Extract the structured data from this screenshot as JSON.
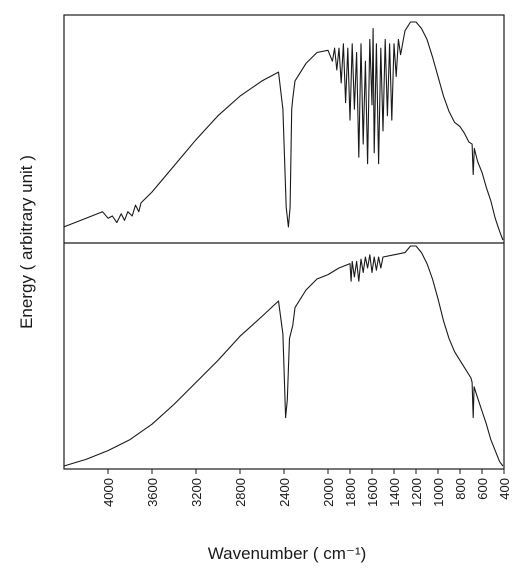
{
  "chart_data": [
    {
      "type": "line",
      "panel": "top",
      "xlabel": "Wavenumber ( cm⁻¹)",
      "ylabel": "Energy ( arbitrary unit )",
      "xlim": [
        4400,
        400
      ],
      "ylim": [
        0,
        1
      ],
      "x_reversed": true,
      "series": [
        {
          "points": [
            [
              4400,
              0.06
            ],
            [
              4200,
              0.1
            ],
            [
              4050,
              0.13
            ],
            [
              4000,
              0.1
            ],
            [
              3960,
              0.11
            ],
            [
              3920,
              0.08
            ],
            [
              3880,
              0.12
            ],
            [
              3850,
              0.09
            ],
            [
              3820,
              0.13
            ],
            [
              3780,
              0.11
            ],
            [
              3750,
              0.16
            ],
            [
              3720,
              0.13
            ],
            [
              3700,
              0.17
            ],
            [
              3600,
              0.22
            ],
            [
              3400,
              0.34
            ],
            [
              3200,
              0.46
            ],
            [
              3000,
              0.57
            ],
            [
              2800,
              0.66
            ],
            [
              2600,
              0.73
            ],
            [
              2450,
              0.77
            ],
            [
              2410,
              0.6
            ],
            [
              2380,
              0.15
            ],
            [
              2360,
              0.06
            ],
            [
              2345,
              0.15
            ],
            [
              2330,
              0.6
            ],
            [
              2320,
              0.65
            ],
            [
              2300,
              0.73
            ],
            [
              2200,
              0.81
            ],
            [
              2100,
              0.86
            ],
            [
              2000,
              0.87
            ],
            [
              1960,
              0.82
            ],
            [
              1940,
              0.88
            ],
            [
              1920,
              0.78
            ],
            [
              1900,
              0.88
            ],
            [
              1880,
              0.72
            ],
            [
              1860,
              0.9
            ],
            [
              1840,
              0.63
            ],
            [
              1820,
              0.88
            ],
            [
              1800,
              0.55
            ],
            [
              1780,
              0.9
            ],
            [
              1760,
              0.6
            ],
            [
              1740,
              0.86
            ],
            [
              1720,
              0.38
            ],
            [
              1700,
              0.9
            ],
            [
              1680,
              0.44
            ],
            [
              1660,
              0.82
            ],
            [
              1640,
              0.35
            ],
            [
              1620,
              0.92
            ],
            [
              1600,
              0.62
            ],
            [
              1590,
              0.97
            ],
            [
              1580,
              0.4
            ],
            [
              1560,
              0.9
            ],
            [
              1540,
              0.35
            ],
            [
              1520,
              0.88
            ],
            [
              1500,
              0.5
            ],
            [
              1480,
              0.92
            ],
            [
              1460,
              0.57
            ],
            [
              1440,
              0.9
            ],
            [
              1420,
              0.55
            ],
            [
              1400,
              0.9
            ],
            [
              1380,
              0.75
            ],
            [
              1360,
              0.92
            ],
            [
              1340,
              0.85
            ],
            [
              1300,
              0.96
            ],
            [
              1250,
              1.0
            ],
            [
              1200,
              1.0
            ],
            [
              1150,
              0.97
            ],
            [
              1100,
              0.92
            ],
            [
              1050,
              0.84
            ],
            [
              1000,
              0.75
            ],
            [
              950,
              0.66
            ],
            [
              900,
              0.59
            ],
            [
              850,
              0.54
            ],
            [
              800,
              0.52
            ],
            [
              760,
              0.49
            ],
            [
              720,
              0.45
            ],
            [
              690,
              0.44
            ],
            [
              680,
              0.3
            ],
            [
              670,
              0.42
            ],
            [
              640,
              0.36
            ],
            [
              600,
              0.31
            ],
            [
              560,
              0.24
            ],
            [
              520,
              0.18
            ],
            [
              480,
              0.1
            ],
            [
              440,
              0.04
            ],
            [
              410,
              0.0
            ]
          ]
        }
      ]
    },
    {
      "type": "line",
      "panel": "bottom",
      "xlabel": "Wavenumber ( cm⁻¹)",
      "ylabel": "Energy ( arbitrary unit )",
      "xlim": [
        4400,
        400
      ],
      "ylim": [
        0,
        1
      ],
      "x_reversed": true,
      "xticks": [
        4000,
        3600,
        3200,
        2800,
        2400,
        2000,
        1800,
        1600,
        1400,
        1200,
        1000,
        800,
        600,
        400
      ],
      "series": [
        {
          "points": [
            [
              4400,
              0.0
            ],
            [
              4200,
              0.03
            ],
            [
              4000,
              0.07
            ],
            [
              3800,
              0.12
            ],
            [
              3600,
              0.19
            ],
            [
              3400,
              0.28
            ],
            [
              3200,
              0.38
            ],
            [
              3000,
              0.48
            ],
            [
              2800,
              0.59
            ],
            [
              2600,
              0.68
            ],
            [
              2450,
              0.75
            ],
            [
              2410,
              0.6
            ],
            [
              2385,
              0.22
            ],
            [
              2370,
              0.3
            ],
            [
              2350,
              0.58
            ],
            [
              2320,
              0.64
            ],
            [
              2300,
              0.72
            ],
            [
              2200,
              0.8
            ],
            [
              2100,
              0.85
            ],
            [
              2000,
              0.87
            ],
            [
              1900,
              0.9
            ],
            [
              1800,
              0.92
            ],
            [
              1790,
              0.84
            ],
            [
              1780,
              0.93
            ],
            [
              1760,
              0.86
            ],
            [
              1740,
              0.93
            ],
            [
              1720,
              0.84
            ],
            [
              1700,
              0.94
            ],
            [
              1680,
              0.88
            ],
            [
              1660,
              0.95
            ],
            [
              1640,
              0.9
            ],
            [
              1620,
              0.96
            ],
            [
              1600,
              0.88
            ],
            [
              1580,
              0.95
            ],
            [
              1560,
              0.89
            ],
            [
              1540,
              0.95
            ],
            [
              1520,
              0.9
            ],
            [
              1500,
              0.95
            ],
            [
              1400,
              0.96
            ],
            [
              1300,
              0.97
            ],
            [
              1250,
              1.0
            ],
            [
              1200,
              1.0
            ],
            [
              1150,
              0.97
            ],
            [
              1100,
              0.92
            ],
            [
              1050,
              0.85
            ],
            [
              1000,
              0.76
            ],
            [
              950,
              0.66
            ],
            [
              900,
              0.58
            ],
            [
              850,
              0.52
            ],
            [
              800,
              0.48
            ],
            [
              750,
              0.44
            ],
            [
              700,
              0.4
            ],
            [
              690,
              0.38
            ],
            [
              680,
              0.22
            ],
            [
              672,
              0.36
            ],
            [
              640,
              0.31
            ],
            [
              600,
              0.25
            ],
            [
              560,
              0.19
            ],
            [
              520,
              0.12
            ],
            [
              480,
              0.07
            ],
            [
              440,
              0.02
            ],
            [
              410,
              0.0
            ]
          ]
        }
      ]
    }
  ]
}
